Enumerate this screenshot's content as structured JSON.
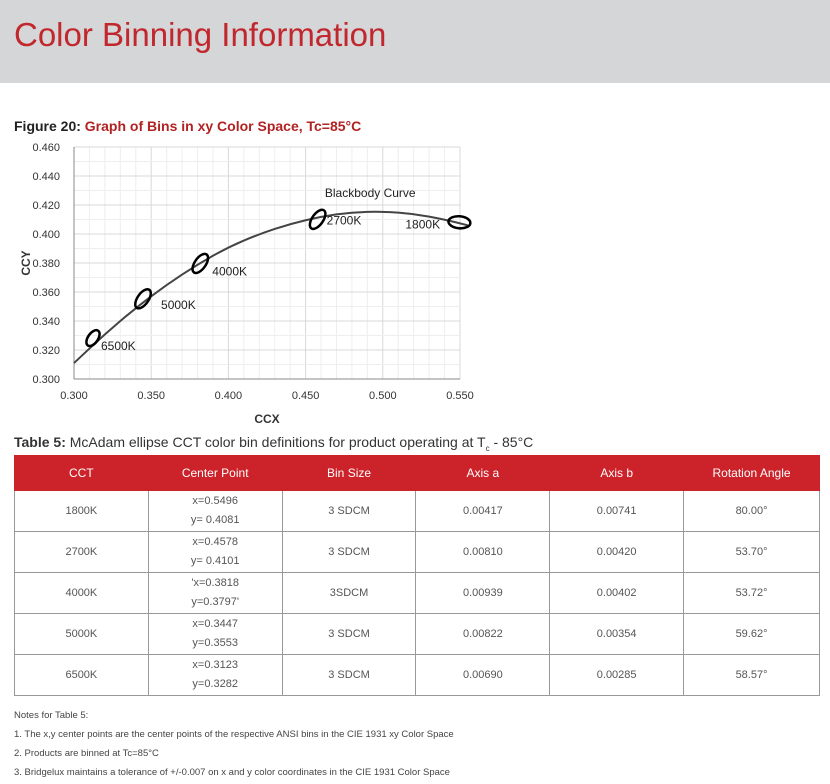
{
  "header": {
    "title": "Color Binning Information"
  },
  "figure": {
    "label": "Figure 20:",
    "title": "Graph of Bins in xy Color Space, Tc=85°C"
  },
  "chart_data": {
    "type": "scatter",
    "xlabel": "CCX",
    "ylabel": "CCY",
    "xlim": [
      0.3,
      0.55
    ],
    "ylim": [
      0.3,
      0.46
    ],
    "x_ticks": [
      "0.300",
      "0.350",
      "0.400",
      "0.450",
      "0.500",
      "0.550"
    ],
    "y_ticks": [
      "0.300",
      "0.320",
      "0.340",
      "0.360",
      "0.380",
      "0.400",
      "0.420",
      "0.440",
      "0.460"
    ],
    "grid": true,
    "curve": {
      "name": "Blackbody Curve",
      "x": [
        0.3,
        0.32,
        0.34,
        0.36,
        0.38,
        0.4,
        0.42,
        0.44,
        0.46,
        0.48,
        0.5,
        0.52,
        0.54,
        0.555
      ],
      "y": [
        0.311,
        0.331,
        0.349,
        0.365,
        0.379,
        0.391,
        0.4,
        0.407,
        0.412,
        0.415,
        0.4155,
        0.414,
        0.41,
        0.406
      ]
    },
    "ellipses": [
      {
        "label": "6500K",
        "x": 0.3123,
        "y": 0.3282,
        "rx": 0.0045,
        "ry": 0.0065,
        "rotation": 58.57
      },
      {
        "label": "5000K",
        "x": 0.3447,
        "y": 0.3553,
        "rx": 0.0055,
        "ry": 0.008,
        "rotation": 59.62
      },
      {
        "label": "4000K",
        "x": 0.3818,
        "y": 0.3797,
        "rx": 0.006,
        "ry": 0.0085,
        "rotation": 53.72
      },
      {
        "label": "2700K",
        "x": 0.4578,
        "y": 0.4101,
        "rx": 0.0055,
        "ry": 0.0075,
        "rotation": 53.7
      },
      {
        "label": "1800K",
        "x": 0.5496,
        "y": 0.4081,
        "rx": 0.0075,
        "ry": 0.0045,
        "rotation": 80.0
      }
    ]
  },
  "table": {
    "label": "Table 5:",
    "title_pre": "McAdam ellipse CCT color bin definitions for product operating at T",
    "title_sub": "c",
    "title_post": " - 85°C",
    "headers": [
      "CCT",
      "Center Point",
      "Bin Size",
      "Axis a",
      "Axis b",
      "Rotation Angle"
    ],
    "rows": [
      {
        "cct": "1800K",
        "cx": "x=0.5496",
        "cy": "y= 0.4081",
        "bin": "3 SDCM",
        "a": "0.00417",
        "b": "0.00741",
        "rot": "80.00°"
      },
      {
        "cct": "2700K",
        "cx": "x=0.4578",
        "cy": "y= 0.4101",
        "bin": "3 SDCM",
        "a": "0.00810",
        "b": "0.00420",
        "rot": "53.70°"
      },
      {
        "cct": "4000K",
        "cx": "'x=0.3818",
        "cy": "y=0.3797'",
        "bin": "3SDCM",
        "a": "0.00939",
        "b": "0.00402",
        "rot": "53.72°"
      },
      {
        "cct": "5000K",
        "cx": "x=0.3447",
        "cy": "y=0.3553",
        "bin": "3 SDCM",
        "a": "0.00822",
        "b": "0.00354",
        "rot": "59.62°"
      },
      {
        "cct": "6500K",
        "cx": "x=0.3123",
        "cy": "y=0.3282",
        "bin": "3 SDCM",
        "a": "0.00690",
        "b": "0.00285",
        "rot": "58.57°"
      }
    ]
  },
  "notes": {
    "title": "Notes for Table 5:",
    "items": [
      "1. The x,y center points are the center points of the respective ANSI bins in the CIE 1931 xy Color Space",
      "2. Products are binned at Tc=85°C",
      "3. Bridgelux maintains a tolerance of +/-0.007 on x and y color coordinates in the CIE 1931 Color Space"
    ]
  }
}
